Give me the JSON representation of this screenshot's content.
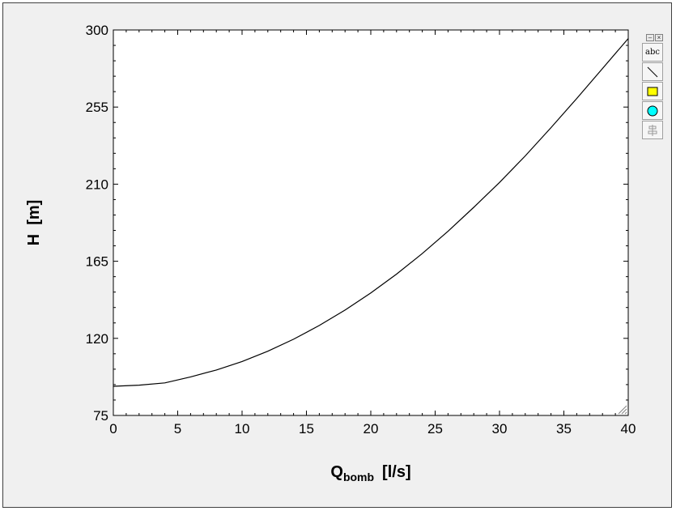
{
  "chart_data": {
    "type": "line",
    "title": "",
    "xlabel_main": "Q",
    "xlabel_sub": "bomb",
    "xlabel_unit": "[l/s]",
    "ylabel": "H  [m]",
    "xlim": [
      0,
      40
    ],
    "ylim": [
      75,
      300
    ],
    "x_ticks": [
      0,
      5,
      10,
      15,
      20,
      25,
      30,
      35,
      40
    ],
    "y_ticks": [
      75,
      120,
      165,
      210,
      255,
      300
    ],
    "grid": false,
    "legend": "none",
    "series": [
      {
        "color": "#000000",
        "x": [
          0,
          2,
          4,
          6,
          8,
          10,
          12,
          14,
          16,
          18,
          20,
          22,
          24,
          26,
          28,
          30,
          32,
          34,
          36,
          38,
          40
        ],
        "y": [
          92,
          92.7,
          94,
          97.5,
          101.5,
          106.5,
          112.5,
          119.5,
          127.5,
          136.5,
          146.5,
          157.5,
          169.5,
          182.5,
          196.5,
          211,
          226.5,
          243,
          260,
          277.5,
          295
        ]
      }
    ]
  },
  "toolbar": {
    "text_tool_label": "abc",
    "icons": [
      "minimize-icon",
      "close-icon",
      "text-tool-icon",
      "line-tool-icon",
      "rectangle-tool-icon",
      "ellipse-tool-icon",
      "align-tool-icon"
    ],
    "rect_color": "#ffff00",
    "ellipse_color": "#00ffff"
  }
}
